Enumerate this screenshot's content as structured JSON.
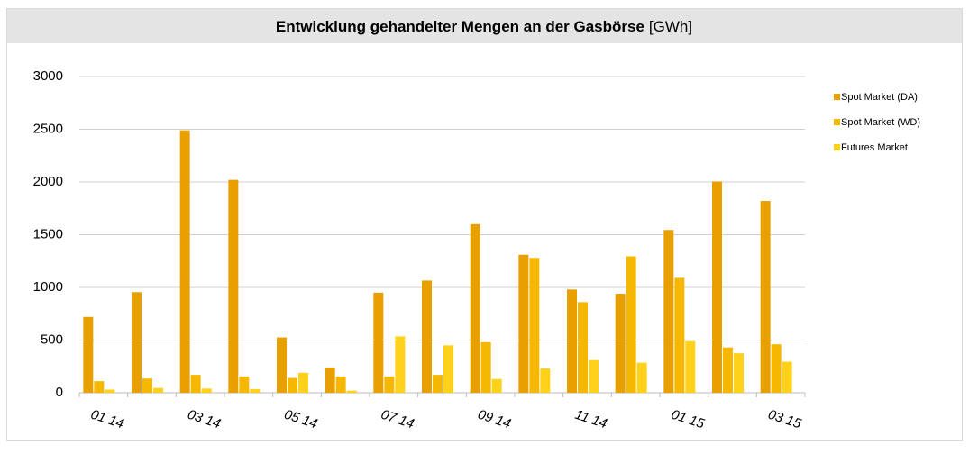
{
  "chart_data": {
    "type": "bar",
    "title": "Entwicklung gehandelter Mengen an der Gasbörse",
    "unit": "[GWh]",
    "categories": [
      "01 14",
      null,
      "03 14",
      null,
      "05 14",
      null,
      "07 14",
      null,
      "09 14",
      null,
      "11 14",
      null,
      "01 15",
      null,
      "03 15"
    ],
    "series": [
      {
        "name": "Spot Market (DA)",
        "color": "#e8a000",
        "values": [
          720,
          955,
          2490,
          2020,
          525,
          240,
          950,
          1065,
          1600,
          1310,
          980,
          940,
          1545,
          2005,
          1820
        ]
      },
      {
        "name": "Spot Market (WD)",
        "color": "#f6b700",
        "values": [
          110,
          135,
          170,
          155,
          140,
          155,
          155,
          170,
          480,
          1280,
          860,
          1295,
          1090,
          430,
          460
        ]
      },
      {
        "name": "Futures Market",
        "color": "#ffd11a",
        "values": [
          30,
          45,
          40,
          35,
          190,
          20,
          535,
          450,
          130,
          230,
          310,
          285,
          490,
          375,
          295
        ]
      }
    ],
    "ylim": [
      0,
      3000
    ],
    "yticks": [
      0,
      500,
      1000,
      1500,
      2000,
      2500,
      3000
    ],
    "grid": true,
    "legend": "right"
  }
}
